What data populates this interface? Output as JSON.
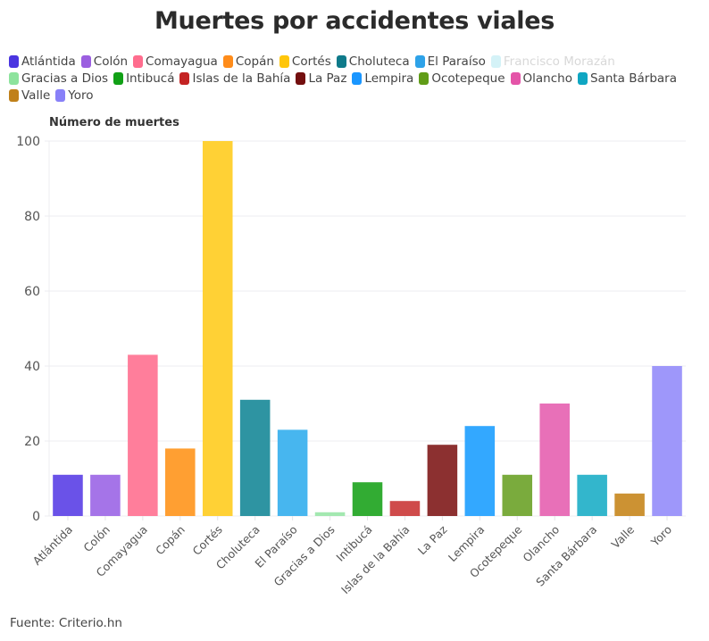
{
  "chart_data": {
    "type": "bar",
    "title": "Muertes por accidentes viales",
    "xlabel": "",
    "ylabel": "Número de muertes",
    "ylim": [
      0,
      100
    ],
    "yticks": [
      0,
      20,
      40,
      60,
      80,
      100
    ],
    "grid": true,
    "legend_placement": "top",
    "categories": [
      "Atlántida",
      "Colón",
      "Comayagua",
      "Copán",
      "Cortés",
      "Choluteca",
      "El Paraíso",
      "Gracias a Dios",
      "Intibucá",
      "Islas de la Bahía",
      "La Paz",
      "Lempira",
      "Ocotepeque",
      "Olancho",
      "Santa Bárbara",
      "Valle",
      "Yoro"
    ],
    "values": [
      11,
      11,
      43,
      18,
      100,
      31,
      23,
      1,
      9,
      4,
      19,
      24,
      11,
      30,
      11,
      6,
      40
    ],
    "bar_colors": [
      "#6a52e8",
      "#a574e8",
      "#ff7e9b",
      "#ff9f32",
      "#ffd135",
      "#2e94a2",
      "#47b6ef",
      "#a3e8b0",
      "#32ac33",
      "#cf4b4b",
      "#8c3030",
      "#33a8ff",
      "#7aab3d",
      "#e870b8",
      "#33b6cc",
      "#cc9233",
      "#9e97fa"
    ],
    "legend": [
      {
        "label": "Atlántida",
        "color": "#4a35e0"
      },
      {
        "label": "Colón",
        "color": "#9b5fe0"
      },
      {
        "label": "Comayagua",
        "color": "#ff6d8e"
      },
      {
        "label": "Copán",
        "color": "#ff8c1a"
      },
      {
        "label": "Cortés",
        "color": "#ffc60a"
      },
      {
        "label": "Choluteca",
        "color": "#0e7a8a"
      },
      {
        "label": "El Paraíso",
        "color": "#2ea2e8"
      },
      {
        "label": "Francisco Morazán",
        "color": "#d4f2f7",
        "faded": true
      },
      {
        "label": "Gracias a Dios",
        "color": "#8de39d"
      },
      {
        "label": "Intibucá",
        "color": "#11a016"
      },
      {
        "label": "Islas de la Bahía",
        "color": "#c42323"
      },
      {
        "label": "La Paz",
        "color": "#730f0f"
      },
      {
        "label": "Lempira",
        "color": "#1a96ff"
      },
      {
        "label": "Ocotepeque",
        "color": "#609c17"
      },
      {
        "label": "Olancho",
        "color": "#e454a8"
      },
      {
        "label": "Santa Bárbara",
        "color": "#0fa6c2"
      },
      {
        "label": "Valle",
        "color": "#c0801a"
      },
      {
        "label": "Yoro",
        "color": "#8880f8"
      }
    ],
    "source": "Fuente: Criterio.hn"
  }
}
